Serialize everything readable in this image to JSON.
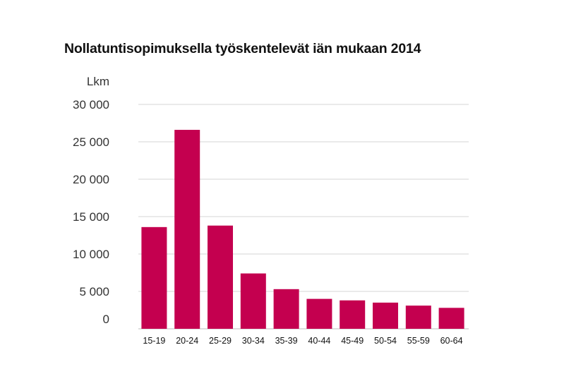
{
  "chart_data": {
    "type": "bar",
    "title": "Nollatuntisopimuksella työskentelevät iän mukaan 2014",
    "ylabel": "Lkm",
    "xlabel": "",
    "categories": [
      "15-19",
      "20-24",
      "25-29",
      "30-34",
      "35-39",
      "40-44",
      "45-49",
      "50-54",
      "55-59",
      "60-64"
    ],
    "values": [
      13600,
      26600,
      13800,
      7400,
      5300,
      4000,
      3800,
      3500,
      3100,
      2800
    ],
    "ylim": [
      0,
      30000
    ],
    "yticks": [
      0,
      5000,
      10000,
      15000,
      20000,
      25000,
      30000
    ],
    "ytick_labels": [
      "0",
      "5 000",
      "10 000",
      "15 000",
      "20 000",
      "25 000",
      "30 000"
    ],
    "grid": true,
    "bar_color": "#c4004f",
    "grid_color": "#d6d6d6"
  }
}
